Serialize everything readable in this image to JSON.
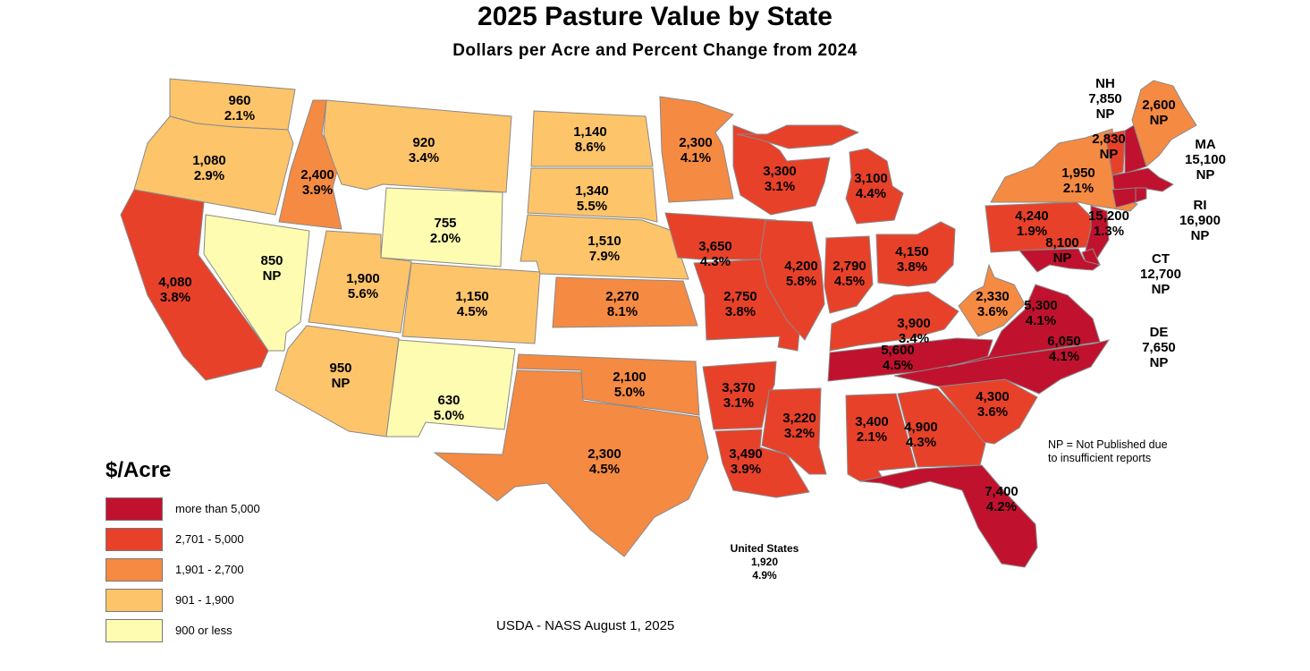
{
  "title": "2025 Pasture Value by State",
  "subtitle": "Dollars per Acre and Percent Change from 2024",
  "legend": {
    "title": "$/Acre",
    "classes": [
      {
        "label": "more than 5,000",
        "color": "#c0122e"
      },
      {
        "label": "2,701 - 5,000",
        "color": "#e8412a"
      },
      {
        "label": "1,901 - 2,700",
        "color": "#f58a43"
      },
      {
        "label": "901 - 1,900",
        "color": "#fdc46a"
      },
      {
        "label": "900 or less",
        "color": "#fefcb0"
      }
    ]
  },
  "states": [
    {
      "name": "WA",
      "value": "960",
      "change": "2.1%",
      "class": 3
    },
    {
      "name": "OR",
      "value": "1,080",
      "change": "2.9%",
      "class": 3
    },
    {
      "name": "CA",
      "value": "4,080",
      "change": "3.8%",
      "class": 1
    },
    {
      "name": "ID",
      "value": "2,400",
      "change": "3.9%",
      "class": 2
    },
    {
      "name": "NV",
      "value": "850",
      "change": "NP",
      "class": 4
    },
    {
      "name": "MT",
      "value": "920",
      "change": "3.4%",
      "class": 3
    },
    {
      "name": "WY",
      "value": "755",
      "change": "2.0%",
      "class": 4
    },
    {
      "name": "UT",
      "value": "1,900",
      "change": "5.6%",
      "class": 3
    },
    {
      "name": "CO",
      "value": "1,150",
      "change": "4.5%",
      "class": 3
    },
    {
      "name": "AZ",
      "value": "950",
      "change": "NP",
      "class": 3
    },
    {
      "name": "NM",
      "value": "630",
      "change": "5.0%",
      "class": 4
    },
    {
      "name": "ND",
      "value": "1,140",
      "change": "8.6%",
      "class": 3
    },
    {
      "name": "SD",
      "value": "1,340",
      "change": "5.5%",
      "class": 3
    },
    {
      "name": "NE",
      "value": "1,510",
      "change": "7.9%",
      "class": 3
    },
    {
      "name": "KS",
      "value": "2,270",
      "change": "8.1%",
      "class": 2
    },
    {
      "name": "OK",
      "value": "2,100",
      "change": "5.0%",
      "class": 2
    },
    {
      "name": "TX",
      "value": "2,300",
      "change": "4.5%",
      "class": 2
    },
    {
      "name": "MN",
      "value": "2,300",
      "change": "4.1%",
      "class": 2
    },
    {
      "name": "IA",
      "value": "3,650",
      "change": "4.3%",
      "class": 1
    },
    {
      "name": "MO",
      "value": "2,750",
      "change": "3.8%",
      "class": 1
    },
    {
      "name": "AR",
      "value": "3,370",
      "change": "3.1%",
      "class": 1
    },
    {
      "name": "LA",
      "value": "3,490",
      "change": "3.9%",
      "class": 1
    },
    {
      "name": "WI",
      "value": "3,300",
      "change": "3.1%",
      "class": 1
    },
    {
      "name": "IL",
      "value": "4,200",
      "change": "5.8%",
      "class": 1
    },
    {
      "name": "MS",
      "value": "3,220",
      "change": "3.2%",
      "class": 1
    },
    {
      "name": "MI",
      "value": "3,100",
      "change": "4.4%",
      "class": 1
    },
    {
      "name": "IN",
      "value": "2,790",
      "change": "4.5%",
      "class": 1
    },
    {
      "name": "OH",
      "value": "4,150",
      "change": "3.8%",
      "class": 1
    },
    {
      "name": "KY",
      "value": "3,900",
      "change": "3.4%",
      "class": 1
    },
    {
      "name": "TN",
      "value": "5,600",
      "change": "4.5%",
      "class": 0
    },
    {
      "name": "AL",
      "value": "3,400",
      "change": "2.1%",
      "class": 1
    },
    {
      "name": "GA",
      "value": "4,900",
      "change": "4.3%",
      "class": 1
    },
    {
      "name": "FL",
      "value": "7,400",
      "change": "4.2%",
      "class": 0
    },
    {
      "name": "SC",
      "value": "4,300",
      "change": "3.6%",
      "class": 1
    },
    {
      "name": "NC",
      "value": "6,050",
      "change": "4.1%",
      "class": 0
    },
    {
      "name": "VA",
      "value": "5,300",
      "change": "4.1%",
      "class": 0
    },
    {
      "name": "WV",
      "value": "2,330",
      "change": "3.6%",
      "class": 2
    },
    {
      "name": "PA",
      "value": "4,240",
      "change": "1.9%",
      "class": 1
    },
    {
      "name": "NY",
      "value": "1,950",
      "change": "2.1%",
      "class": 2
    },
    {
      "name": "NJ",
      "value": "15,200",
      "change": "1.3%",
      "class": 0
    },
    {
      "name": "MD",
      "value": "8,100",
      "change": "NP",
      "class": 0
    },
    {
      "name": "VT",
      "value": "2,830",
      "change": "NP",
      "class": 1
    },
    {
      "name": "ME",
      "value": "2,600",
      "change": "NP",
      "class": 2
    },
    {
      "name": "NH",
      "value": "7,850",
      "change": "NP",
      "class": 0
    },
    {
      "name": "MA",
      "value": "15,100",
      "change": "NP",
      "class": 0
    },
    {
      "name": "RI",
      "value": "16,900",
      "change": "NP",
      "class": 0
    },
    {
      "name": "CT",
      "value": "12,700",
      "change": "NP",
      "class": 0
    },
    {
      "name": "DE",
      "value": "7,650",
      "change": "NP",
      "class": 0
    }
  ],
  "us_total": {
    "name": "United States",
    "value": "1,920",
    "change": "4.9%"
  },
  "note": {
    "line1": "NP = Not Published due",
    "line2": "to insufficient reports"
  },
  "source": "USDA - NASS August 1, 2025"
}
